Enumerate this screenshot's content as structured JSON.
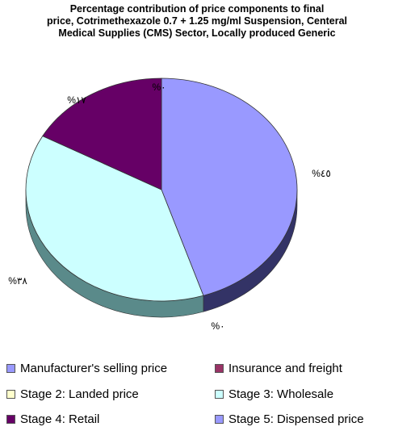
{
  "chart_data": {
    "type": "pie",
    "title_lines": [
      "Percentage contribution of price components to final",
      "price, Cotrimethexazole 0.7 + 1.25 mg/ml Suspension, Centeral",
      "Medical Supplies (CMS) Sector, Locally produced Generic"
    ],
    "slices": [
      {
        "name": "Manufacturer's selling price",
        "value": 45,
        "label": "%٤٥",
        "color": "#9999ff",
        "side": "#333366"
      },
      {
        "name": "Insurance and freight",
        "value": 0,
        "label": "%٠",
        "color": "#993366",
        "side": "#4d1a33"
      },
      {
        "name": "Stage 2: Landed price",
        "value": 0,
        "label": "%٠",
        "color": "#ffffcc",
        "side": "#808066"
      },
      {
        "name": "Stage 3: Wholesale",
        "value": 38,
        "label": "%٣٨",
        "color": "#ccffff",
        "side": "#5a8a8a"
      },
      {
        "name": "Stage 4: Retail",
        "value": 17,
        "label": "%١٧",
        "color": "#660066",
        "side": "#330033"
      },
      {
        "name": "Stage 5: Dispensed price",
        "value": 0,
        "label": "%٠",
        "color": "#9999ff",
        "side": "#333366"
      }
    ],
    "legend_position": "bottom"
  }
}
